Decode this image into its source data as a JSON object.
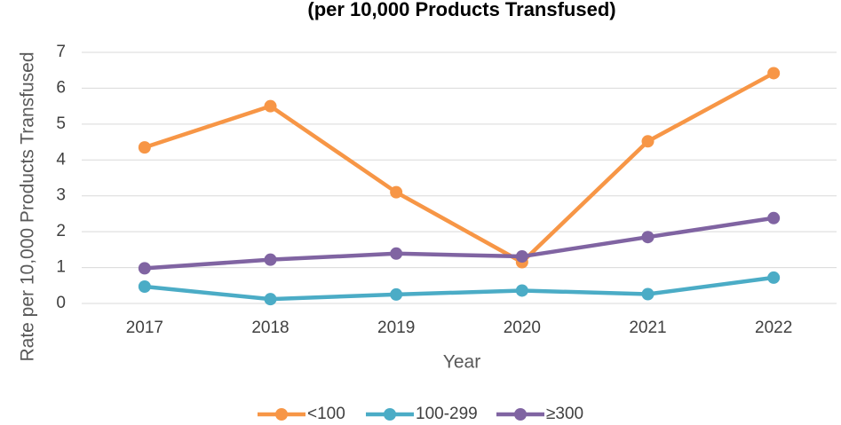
{
  "chart_data": {
    "type": "line",
    "title": "(per 10,000 Products Transfused)",
    "x_label": "Year",
    "y_label": "Rate per 10,000 Products Transfused",
    "categories": [
      "2017",
      "2018",
      "2019",
      "2020",
      "2021",
      "2022"
    ],
    "series": [
      {
        "name": "<100",
        "color": "#f79646",
        "values": [
          4.35,
          5.5,
          3.1,
          1.15,
          4.52,
          6.42
        ]
      },
      {
        "name": "100-299",
        "color": "#4bacc6",
        "values": [
          0.47,
          0.12,
          0.25,
          0.36,
          0.26,
          0.72
        ]
      },
      {
        "name": "≥300",
        "color": "#8064a2",
        "values": [
          0.98,
          1.22,
          1.39,
          1.31,
          1.85,
          2.38
        ]
      }
    ],
    "ylim": [
      0,
      7
    ],
    "yticks": [
      0,
      1,
      2,
      3,
      4,
      5,
      6,
      7
    ],
    "grid": true,
    "legend": "bottom"
  }
}
